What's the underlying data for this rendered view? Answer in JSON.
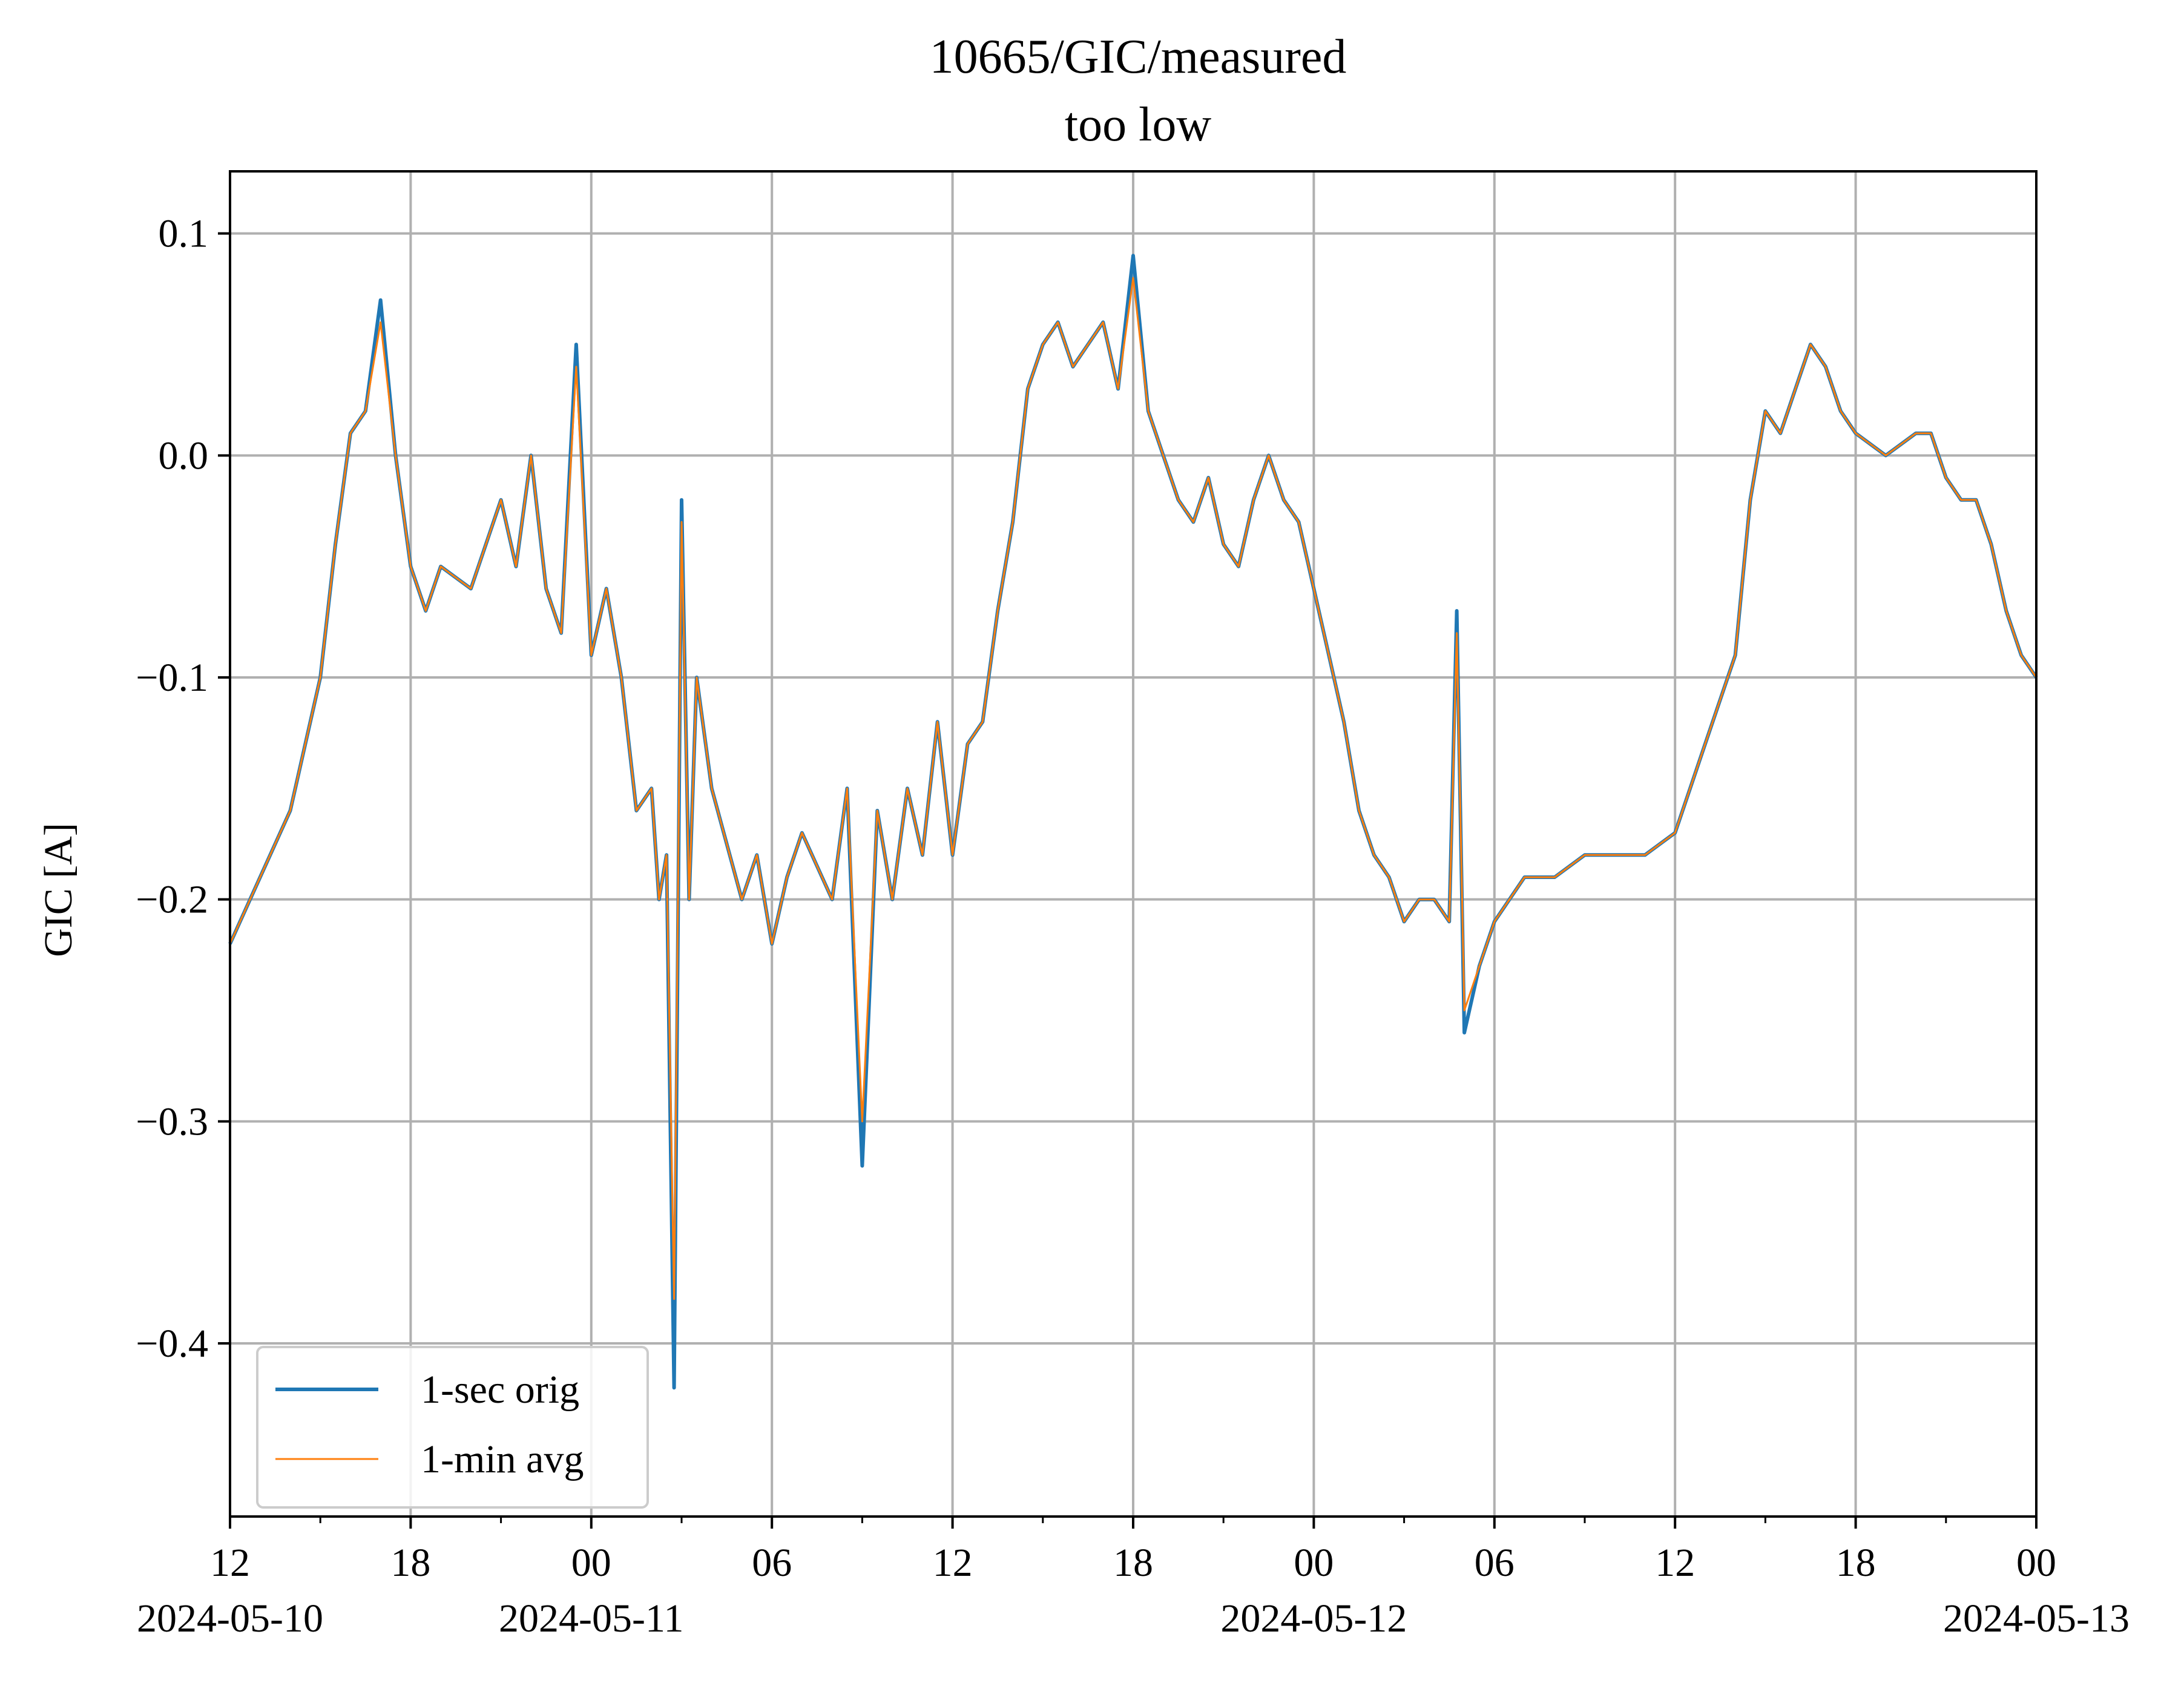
{
  "chart_data": {
    "type": "line",
    "title": "10665/GIC/measured",
    "subtitle": "too low",
    "ylabel": "GIC [A]",
    "xlabel": "",
    "xlim": [
      "2024-05-10 12:00",
      "2024-05-13 00:00"
    ],
    "ylim": [
      -0.478,
      0.128
    ],
    "grid": true,
    "legend_position": "lower-left",
    "yticks": [
      {
        "value": 0.1,
        "label": "0.1"
      },
      {
        "value": 0.0,
        "label": "0.0"
      },
      {
        "value": -0.1,
        "label": "−0.1"
      },
      {
        "value": -0.2,
        "label": "−0.2"
      },
      {
        "value": -0.3,
        "label": "−0.3"
      },
      {
        "value": -0.4,
        "label": "−0.4"
      }
    ],
    "xticks": [
      {
        "value": "2024-05-10 12:00",
        "label": "12",
        "date": "2024-05-10"
      },
      {
        "value": "2024-05-10 18:00",
        "label": "18",
        "date": ""
      },
      {
        "value": "2024-05-11 00:00",
        "label": "00",
        "date": "2024-05-11"
      },
      {
        "value": "2024-05-11 06:00",
        "label": "06",
        "date": ""
      },
      {
        "value": "2024-05-11 12:00",
        "label": "12",
        "date": ""
      },
      {
        "value": "2024-05-11 18:00",
        "label": "18",
        "date": ""
      },
      {
        "value": "2024-05-12 00:00",
        "label": "00",
        "date": "2024-05-12"
      },
      {
        "value": "2024-05-12 06:00",
        "label": "06",
        "date": ""
      },
      {
        "value": "2024-05-12 12:00",
        "label": "12",
        "date": ""
      },
      {
        "value": "2024-05-12 18:00",
        "label": "18",
        "date": ""
      },
      {
        "value": "2024-05-13 00:00",
        "label": "00",
        "date": "2024-05-13"
      }
    ],
    "minor_xticks": [
      "2024-05-10 15:00",
      "2024-05-10 21:00",
      "2024-05-11 03:00",
      "2024-05-11 09:00",
      "2024-05-11 15:00",
      "2024-05-11 21:00",
      "2024-05-12 03:00",
      "2024-05-12 09:00",
      "2024-05-12 15:00",
      "2024-05-12 21:00"
    ],
    "x": [
      "2024-05-10 12:00",
      "2024-05-10 13:00",
      "2024-05-10 14:00",
      "2024-05-10 15:00",
      "2024-05-10 15:30",
      "2024-05-10 16:00",
      "2024-05-10 16:30",
      "2024-05-10 17:00",
      "2024-05-10 17:30",
      "2024-05-10 18:00",
      "2024-05-10 18:30",
      "2024-05-10 19:00",
      "2024-05-10 20:00",
      "2024-05-10 21:00",
      "2024-05-10 21:30",
      "2024-05-10 22:00",
      "2024-05-10 22:30",
      "2024-05-10 23:00",
      "2024-05-10 23:30",
      "2024-05-11 00:00",
      "2024-05-11 00:30",
      "2024-05-11 01:00",
      "2024-05-11 01:30",
      "2024-05-11 02:00",
      "2024-05-11 02:15",
      "2024-05-11 02:30",
      "2024-05-11 02:45",
      "2024-05-11 03:00",
      "2024-05-11 03:15",
      "2024-05-11 03:30",
      "2024-05-11 04:00",
      "2024-05-11 05:00",
      "2024-05-11 05:30",
      "2024-05-11 06:00",
      "2024-05-11 06:30",
      "2024-05-11 07:00",
      "2024-05-11 08:00",
      "2024-05-11 08:30",
      "2024-05-11 09:00",
      "2024-05-11 09:30",
      "2024-05-11 10:00",
      "2024-05-11 10:30",
      "2024-05-11 11:00",
      "2024-05-11 11:30",
      "2024-05-11 12:00",
      "2024-05-11 12:30",
      "2024-05-11 13:00",
      "2024-05-11 13:30",
      "2024-05-11 14:00",
      "2024-05-11 14:30",
      "2024-05-11 15:00",
      "2024-05-11 15:30",
      "2024-05-11 16:00",
      "2024-05-11 16:30",
      "2024-05-11 17:00",
      "2024-05-11 17:30",
      "2024-05-11 18:00",
      "2024-05-11 18:30",
      "2024-05-11 19:00",
      "2024-05-11 19:30",
      "2024-05-11 20:00",
      "2024-05-11 20:30",
      "2024-05-11 21:00",
      "2024-05-11 21:30",
      "2024-05-11 22:00",
      "2024-05-11 22:30",
      "2024-05-11 23:00",
      "2024-05-11 23:30",
      "2024-05-12 00:00",
      "2024-05-12 00:30",
      "2024-05-12 01:00",
      "2024-05-12 01:30",
      "2024-05-12 02:00",
      "2024-05-12 02:30",
      "2024-05-12 03:00",
      "2024-05-12 03:30",
      "2024-05-12 04:00",
      "2024-05-12 04:30",
      "2024-05-12 04:45",
      "2024-05-12 05:00",
      "2024-05-12 05:30",
      "2024-05-12 06:00",
      "2024-05-12 07:00",
      "2024-05-12 08:00",
      "2024-05-12 09:00",
      "2024-05-12 10:00",
      "2024-05-12 11:00",
      "2024-05-12 12:00",
      "2024-05-12 12:30",
      "2024-05-12 13:00",
      "2024-05-12 13:30",
      "2024-05-12 14:00",
      "2024-05-12 14:30",
      "2024-05-12 15:00",
      "2024-05-12 15:30",
      "2024-05-12 16:00",
      "2024-05-12 16:30",
      "2024-05-12 17:00",
      "2024-05-12 17:30",
      "2024-05-12 18:00",
      "2024-05-12 19:00",
      "2024-05-12 20:00",
      "2024-05-12 20:30",
      "2024-05-12 21:00",
      "2024-05-12 21:30",
      "2024-05-12 22:00",
      "2024-05-12 22:30",
      "2024-05-12 23:00",
      "2024-05-12 23:30",
      "2024-05-13 00:00"
    ],
    "series": [
      {
        "name": "1-sec orig",
        "color": "#1f77b4",
        "values": [
          -0.22,
          -0.19,
          -0.16,
          -0.1,
          -0.04,
          0.01,
          0.02,
          0.07,
          0.0,
          -0.05,
          -0.07,
          -0.05,
          -0.06,
          -0.02,
          -0.05,
          0.0,
          -0.06,
          -0.08,
          0.05,
          -0.09,
          -0.06,
          -0.1,
          -0.16,
          -0.15,
          -0.2,
          -0.18,
          -0.42,
          -0.02,
          -0.2,
          -0.1,
          -0.15,
          -0.2,
          -0.18,
          -0.22,
          -0.19,
          -0.17,
          -0.2,
          -0.15,
          -0.32,
          -0.16,
          -0.2,
          -0.15,
          -0.18,
          -0.12,
          -0.18,
          -0.13,
          -0.12,
          -0.07,
          -0.03,
          0.03,
          0.05,
          0.06,
          0.04,
          0.05,
          0.06,
          0.03,
          0.09,
          0.02,
          0.0,
          -0.02,
          -0.03,
          -0.01,
          -0.04,
          -0.05,
          -0.02,
          0.0,
          -0.02,
          -0.03,
          -0.06,
          -0.09,
          -0.12,
          -0.16,
          -0.18,
          -0.19,
          -0.21,
          -0.2,
          -0.2,
          -0.21,
          -0.07,
          -0.26,
          -0.23,
          -0.21,
          -0.19,
          -0.19,
          -0.18,
          -0.18,
          -0.18,
          -0.17,
          -0.15,
          -0.13,
          -0.11,
          -0.09,
          -0.02,
          0.02,
          0.01,
          0.03,
          0.05,
          0.04,
          0.02,
          0.01,
          0.0,
          0.01,
          0.01,
          -0.01,
          -0.02,
          -0.02,
          -0.04,
          -0.07,
          -0.09,
          -0.1
        ]
      },
      {
        "name": "1-min avg",
        "color": "#ff7f0e",
        "values": [
          -0.22,
          -0.19,
          -0.16,
          -0.1,
          -0.04,
          0.01,
          0.02,
          0.06,
          0.0,
          -0.05,
          -0.07,
          -0.05,
          -0.06,
          -0.02,
          -0.05,
          0.0,
          -0.06,
          -0.08,
          0.04,
          -0.09,
          -0.06,
          -0.1,
          -0.16,
          -0.15,
          -0.2,
          -0.18,
          -0.38,
          -0.03,
          -0.2,
          -0.1,
          -0.15,
          -0.2,
          -0.18,
          -0.22,
          -0.19,
          -0.17,
          -0.2,
          -0.15,
          -0.3,
          -0.16,
          -0.2,
          -0.15,
          -0.18,
          -0.12,
          -0.18,
          -0.13,
          -0.12,
          -0.07,
          -0.03,
          0.03,
          0.05,
          0.06,
          0.04,
          0.05,
          0.06,
          0.03,
          0.08,
          0.02,
          0.0,
          -0.02,
          -0.03,
          -0.01,
          -0.04,
          -0.05,
          -0.02,
          0.0,
          -0.02,
          -0.03,
          -0.06,
          -0.09,
          -0.12,
          -0.16,
          -0.18,
          -0.19,
          -0.21,
          -0.2,
          -0.2,
          -0.21,
          -0.08,
          -0.25,
          -0.23,
          -0.21,
          -0.19,
          -0.19,
          -0.18,
          -0.18,
          -0.18,
          -0.17,
          -0.15,
          -0.13,
          -0.11,
          -0.09,
          -0.02,
          0.02,
          0.01,
          0.03,
          0.05,
          0.04,
          0.02,
          0.01,
          0.0,
          0.01,
          0.01,
          -0.01,
          -0.02,
          -0.02,
          -0.04,
          -0.07,
          -0.09,
          -0.1
        ]
      }
    ]
  }
}
